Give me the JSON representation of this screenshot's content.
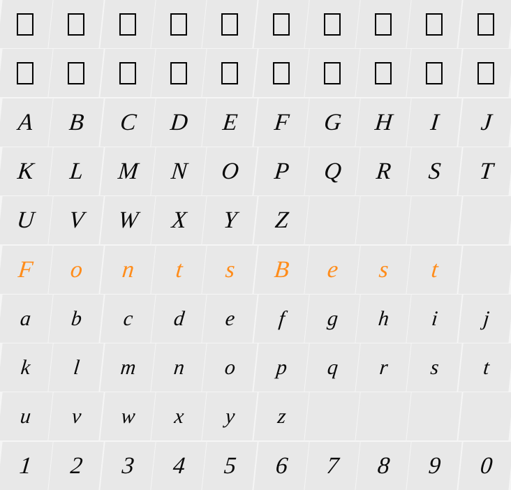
{
  "grid": {
    "rows": 10,
    "cols": 10,
    "background_color": "#e8e8e8",
    "gridline_color": "#f5f5f5",
    "default_text_color": "#0a0a0a",
    "accent_color": "#ff8c1a",
    "glyph_fontsize": 34,
    "lower_fontsize": 30,
    "font_style": "italic-distressed",
    "box_glyph": {
      "width": 20,
      "height": 28,
      "border": "2px solid #000"
    },
    "cells": [
      [
        "□",
        "□",
        "□",
        "□",
        "□",
        "□",
        "□",
        "□",
        "□",
        "□"
      ],
      [
        "□",
        "□",
        "□",
        "□",
        "□",
        "□",
        "□",
        "□",
        "□",
        "□"
      ],
      [
        "A",
        "B",
        "C",
        "D",
        "E",
        "F",
        "G",
        "H",
        "I",
        "J"
      ],
      [
        "K",
        "L",
        "M",
        "N",
        "O",
        "P",
        "Q",
        "R",
        "S",
        "T"
      ],
      [
        "U",
        "V",
        "W",
        "X",
        "Y",
        "Z",
        "",
        "",
        "",
        ""
      ],
      [
        "F",
        "o",
        "n",
        "t",
        "s",
        "B",
        "e",
        "s",
        "t",
        ""
      ],
      [
        "a",
        "b",
        "c",
        "d",
        "e",
        "f",
        "g",
        "h",
        "i",
        "j"
      ],
      [
        "k",
        "l",
        "m",
        "n",
        "o",
        "p",
        "q",
        "r",
        "s",
        "t"
      ],
      [
        "u",
        "v",
        "w",
        "x",
        "y",
        "z",
        "",
        "",
        "",
        ""
      ],
      [
        "1",
        "2",
        "3",
        "4",
        "5",
        "6",
        "7",
        "8",
        "9",
        "0"
      ]
    ],
    "row_meta": [
      {
        "type": "box"
      },
      {
        "type": "box"
      },
      {
        "type": "upper"
      },
      {
        "type": "upper"
      },
      {
        "type": "upper"
      },
      {
        "type": "accent"
      },
      {
        "type": "lower"
      },
      {
        "type": "lower"
      },
      {
        "type": "lower"
      },
      {
        "type": "num"
      }
    ]
  }
}
